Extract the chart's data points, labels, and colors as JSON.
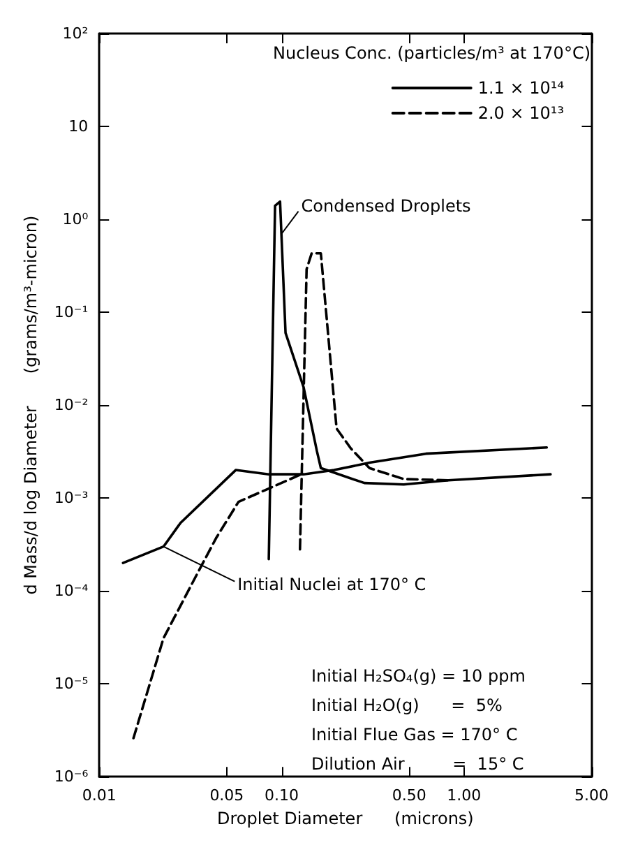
{
  "chart_data": {
    "type": "line",
    "xlabel": "Droplet Diameter      (microns)",
    "ylabel": "d Mass/d log Diameter      (grams/m³-micron)",
    "legend_title": "Nucleus Conc. (particles/m³ at 170°C)",
    "log": "xy",
    "grid": false,
    "legend": "top right",
    "marker": "none",
    "xlim": [
      0.01,
      5
    ],
    "xticks": [
      0.01,
      0.05,
      {
        "value": 0.1,
        "label": "0.10"
      },
      {
        "value": 0.5,
        "label": "0.50"
      },
      {
        "value": 1,
        "label": "1.00"
      },
      {
        "value": 5,
        "label": "5.00"
      }
    ],
    "ylim": [
      1e-06,
      100
    ],
    "yticks": [
      {
        "value": 1e-06,
        "label": "10⁻⁶"
      },
      {
        "value": 1e-05,
        "label": "10⁻⁵"
      },
      {
        "value": 0.0001,
        "label": "10⁻⁴"
      },
      {
        "value": 0.001,
        "label": "10⁻³"
      },
      {
        "value": 0.01,
        "label": "10⁻²"
      },
      {
        "value": 0.1,
        "label": "10⁻¹"
      },
      {
        "value": 1,
        "label": "10⁰"
      },
      10,
      {
        "value": 100,
        "label": "10²"
      }
    ],
    "series": [
      {
        "name": "1.1 × 10¹⁴",
        "color": "#000000",
        "line_style": "solid",
        "x": [
          0.0135,
          0.0225,
          0.0279,
          0.056,
          0.085,
          0.132,
          0.194,
          0.303,
          0.618,
          2.84
        ],
        "values": [
          0.0002,
          0.0003,
          0.00054,
          0.002,
          0.0018,
          0.0018,
          0.002,
          0.0024,
          0.003,
          0.0035
        ]
      },
      {
        "color": "#000000",
        "line_style": "solid",
        "x": [
          0.085,
          0.092,
          0.098,
          0.105,
          0.132,
          0.156,
          0.164,
          0.284,
          0.467,
          0.82,
          2.98
        ],
        "values": [
          0.00022,
          1.4,
          1.55,
          0.06,
          0.0155,
          0.0032,
          0.0021,
          0.00145,
          0.0014,
          0.00155,
          0.0018
        ]
      },
      {
        "name": "2.0 × 10¹³",
        "color": "#000000",
        "line_style": "dashed",
        "x": [
          0.0154,
          0.0225,
          0.0352,
          0.0437,
          0.058,
          0.128
        ],
        "values": [
          2.6e-06,
          3.1e-05,
          0.000166,
          0.00037,
          0.00091,
          0.0018
        ]
      },
      {
        "color": "#000000",
        "line_style": "dashed",
        "x": [
          0.126,
          0.137,
          0.146,
          0.164,
          0.2,
          0.24,
          0.303,
          0.467,
          0.82
        ],
        "values": [
          0.00028,
          0.29,
          0.43,
          0.43,
          0.0056,
          0.0034,
          0.0021,
          0.0016,
          0.00155
        ]
      }
    ],
    "annotations": [
      {
        "text": "Condensed Droplets",
        "x": 0.1,
        "y": 0.7
      },
      {
        "text": "Initial Nuclei at 170° C",
        "x": 0.0225,
        "y": 0.0003
      },
      "Initial H₂SO₄(g) = 10 ppm",
      "Initial H₂O(g)      =  5%",
      "Initial Flue Gas = 170° C",
      "Dilution Air         =  15° C"
    ]
  }
}
